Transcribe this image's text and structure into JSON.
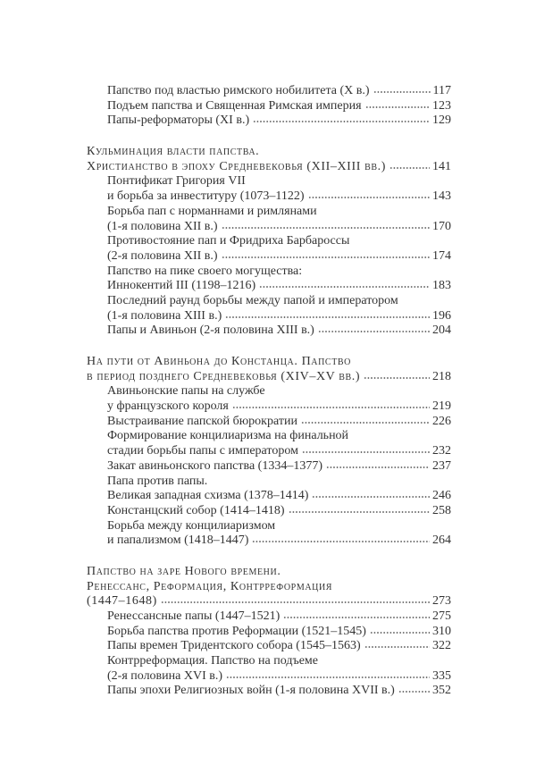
{
  "sections": [
    {
      "lines": [
        {
          "text": "Папство под властью римского нобилитета (X в.)",
          "page": "117",
          "indent": true
        },
        {
          "text": "Подъем папства и Священная Римская империя",
          "page": "123",
          "indent": true
        },
        {
          "text": "Папы-реформаторы (XI в.)",
          "page": "129",
          "indent": true
        }
      ]
    },
    {
      "lines": [
        {
          "text": "Кульминация власти папства.",
          "head": true
        },
        {
          "text": "Христианство в эпоху Средневековья (XII–XIII вв.)",
          "page": "141",
          "head": true
        },
        {
          "text": "Понтификат Григория VII",
          "indent": true
        },
        {
          "text": "и борьба за инвеституру (1073–1122)",
          "page": "143",
          "indent": true
        },
        {
          "text": "Борьба пап с норманнами и римлянами",
          "indent": true
        },
        {
          "text": "(1-я половина XII в.)",
          "page": "170",
          "indent": true
        },
        {
          "text": "Противостояние пап и Фридриха Барбароссы",
          "indent": true
        },
        {
          "text": "(2-я половина XII в.)",
          "page": "174",
          "indent": true
        },
        {
          "text": "Папство на пике своего могущества:",
          "indent": true
        },
        {
          "text": "Иннокентий III (1198–1216)",
          "page": "183",
          "indent": true
        },
        {
          "text": "Последний раунд борьбы между папой и императором",
          "indent": true
        },
        {
          "text": "(1-я половина XIII в.)",
          "page": "196",
          "indent": true
        },
        {
          "text": "Папы и Авиньон (2-я половина XIII в.)",
          "page": "204",
          "indent": true
        }
      ]
    },
    {
      "lines": [
        {
          "text": "На пути от Авиньона до Констанца. Папство",
          "head": true
        },
        {
          "text": "в период позднего Средневековья (XIV–XV вв.)",
          "page": "218",
          "head": true
        },
        {
          "text": "Авиньонские папы на службе",
          "indent": true
        },
        {
          "text": "у французского короля",
          "page": "219",
          "indent": true
        },
        {
          "text": "Выстраивание папской бюрократии",
          "page": "226",
          "indent": true
        },
        {
          "text": "Формирование концилиаризма на финальной",
          "indent": true
        },
        {
          "text": "стадии борьбы папы с императором",
          "page": "232",
          "indent": true
        },
        {
          "text": "Закат авиньонского папства (1334–1377)",
          "page": "237",
          "indent": true
        },
        {
          "text": "Папа против папы.",
          "indent": true
        },
        {
          "text": "Великая западная схизма (1378–1414)",
          "page": "246",
          "indent": true
        },
        {
          "text": "Констанцский собор (1414–1418)",
          "page": "258",
          "indent": true
        },
        {
          "text": "Борьба между концилиаризмом",
          "indent": true
        },
        {
          "text": "и папализмом (1418–1447)",
          "page": "264",
          "indent": true
        }
      ]
    },
    {
      "lines": [
        {
          "text": "Папство на заре Нового времени.",
          "head": true
        },
        {
          "text": "Ренессанс, Реформация, Контрреформация",
          "head": true
        },
        {
          "text": "(1447–1648)",
          "page": "273",
          "head": true
        },
        {
          "text": "Ренессансные папы (1447–1521)",
          "page": "275",
          "indent": true
        },
        {
          "text": "Борьба папства против Реформации (1521–1545)",
          "page": "310",
          "indent": true
        },
        {
          "text": "Папы времен Тридентского собора (1545–1563)",
          "page": "322",
          "indent": true
        },
        {
          "text": "Контрреформация. Папство на подъеме",
          "indent": true
        },
        {
          "text": "(2-я половина XVI в.)",
          "page": "335",
          "indent": true
        },
        {
          "text": "Папы эпохи Религиозных войн (1-я половина XVII в.)",
          "page": "352",
          "indent": true
        }
      ]
    }
  ]
}
